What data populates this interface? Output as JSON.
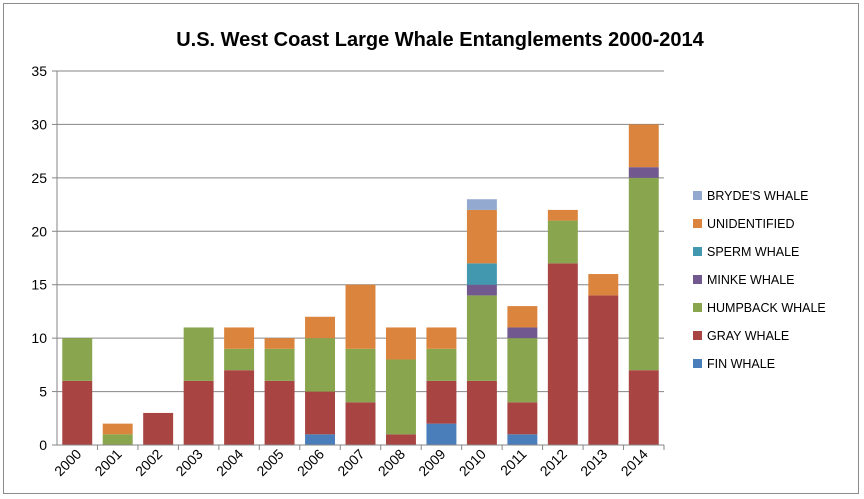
{
  "chart_data": {
    "type": "bar",
    "stacked": true,
    "title": "U.S. West Coast Large Whale Entanglements 2000-2014",
    "xlabel": "",
    "ylabel": "",
    "ylim": [
      0,
      35
    ],
    "yticks": [
      0,
      5,
      10,
      15,
      20,
      25,
      30,
      35
    ],
    "grid": true,
    "legend_position": "right",
    "categories": [
      "2000",
      "2001",
      "2002",
      "2003",
      "2004",
      "2005",
      "2006",
      "2007",
      "2008",
      "2009",
      "2010",
      "2011",
      "2012",
      "2013",
      "2014"
    ],
    "series": [
      {
        "name": "FIN WHALE",
        "color": "#4a7ebb",
        "values": [
          0,
          0,
          0,
          0,
          0,
          0,
          1,
          0,
          0,
          2,
          0,
          1,
          0,
          0,
          0
        ]
      },
      {
        "name": "GRAY WHALE",
        "color": "#a84543",
        "values": [
          6,
          0,
          3,
          6,
          7,
          6,
          4,
          4,
          1,
          4,
          6,
          3,
          17,
          14,
          7
        ]
      },
      {
        "name": "HUMPBACK WHALE",
        "color": "#89a54e",
        "values": [
          4,
          1,
          0,
          5,
          2,
          3,
          5,
          5,
          7,
          3,
          8,
          6,
          4,
          0,
          18
        ]
      },
      {
        "name": "MINKE WHALE",
        "color": "#71588f",
        "values": [
          0,
          0,
          0,
          0,
          0,
          0,
          0,
          0,
          0,
          0,
          1,
          1,
          0,
          0,
          1
        ]
      },
      {
        "name": "SPERM WHALE",
        "color": "#4198af",
        "values": [
          0,
          0,
          0,
          0,
          0,
          0,
          0,
          0,
          0,
          0,
          2,
          0,
          0,
          0,
          0
        ]
      },
      {
        "name": "UNIDENTIFIED",
        "color": "#db843d",
        "values": [
          0,
          1,
          0,
          0,
          2,
          1,
          2,
          6,
          3,
          2,
          5,
          2,
          1,
          2,
          4
        ]
      },
      {
        "name": "BRYDE'S WHALE",
        "color": "#93a9cf",
        "values": [
          0,
          0,
          0,
          0,
          0,
          0,
          0,
          0,
          0,
          0,
          1,
          0,
          0,
          0,
          0
        ]
      }
    ]
  }
}
